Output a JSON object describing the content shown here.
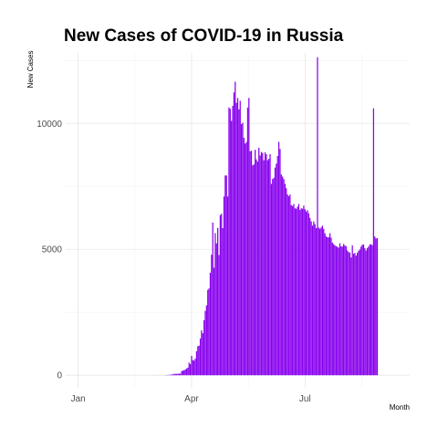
{
  "chart_data": {
    "type": "bar",
    "title": "New Cases of COVID-19 in Russia",
    "xlabel": "Month",
    "ylabel": "New Cases",
    "x_ticks": [
      "Jan",
      "Apr",
      "Jul"
    ],
    "x_tick_dates": [
      "2020-01-01",
      "2020-04-01",
      "2020-07-01"
    ],
    "y_ticks": [
      0,
      5000,
      10000
    ],
    "ylim": [
      -500,
      12800
    ],
    "xlim": [
      "2019-12-22",
      "2020-09-23"
    ],
    "grid": true,
    "legend": "none",
    "bar_color": "#8800ee",
    "series": [
      {
        "start_date": "2020-03-01",
        "values": [
          0,
          3,
          0,
          2,
          1,
          0,
          3,
          0,
          1,
          3,
          6,
          6,
          12,
          11,
          20,
          30,
          33,
          52,
          57,
          54,
          53,
          71,
          57,
          163,
          182,
          196,
          228,
          270,
          302,
          500,
          440,
          771,
          601,
          582,
          658,
          954,
          1154,
          1175,
          1459,
          1786,
          1667,
          2186,
          2558,
          2774,
          3388,
          3448,
          4070,
          4785,
          6060,
          4268,
          5642,
          5236,
          5849,
          4774,
          6361,
          6411,
          5841,
          7099,
          7933,
          7933,
          7099,
          10633,
          10581,
          10102,
          10699,
          11231,
          11656,
          10817,
          11012,
          10559,
          10899,
          9974,
          10028,
          9434,
          9200,
          9263,
          10633,
          11012,
          8894,
          8915,
          8338,
          8371,
          8952,
          8572,
          8485,
          9035,
          8726,
          8863,
          8831,
          8536,
          8855,
          8779,
          8536,
          8595,
          8779,
          7600,
          7792,
          7843,
          8246,
          8404,
          8706,
          9268,
          8985,
          7972,
          7889,
          7790,
          7600,
          7425,
          7176,
          7113,
          7176,
          6760,
          6719,
          6800,
          6632,
          6611,
          6693,
          6800,
          6562,
          6635,
          6611,
          6736,
          6595,
          6500,
          6556,
          6428,
          6248,
          6109,
          5940,
          6109,
          6000,
          5842,
          12630,
          5862,
          5815,
          5871,
          5940,
          5811,
          5635,
          5509,
          5482,
          5475,
          5642,
          5462,
          5267,
          5204,
          5159,
          5118,
          5102,
          5065,
          5241,
          5118,
          5109,
          5212,
          5159,
          5118,
          4952,
          4892,
          4870,
          4676,
          5159,
          4829,
          4852,
          4748,
          4870,
          4945,
          4993,
          5110,
          5185,
          5195,
          5050,
          4952,
          5050,
          5110,
          5195,
          5205,
          5165,
          10600,
          5509,
          5428,
          5449
        ]
      }
    ]
  }
}
